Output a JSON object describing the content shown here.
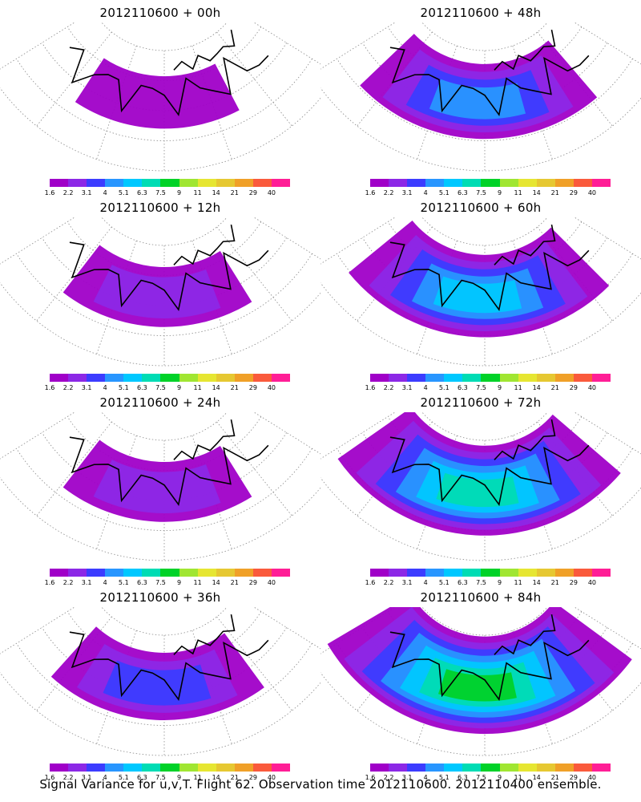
{
  "panels": [
    {
      "title": "2012110600 + 00h",
      "level": 1
    },
    {
      "title": "2012110600 + 48h",
      "level": 4
    },
    {
      "title": "2012110600 + 12h",
      "level": 2
    },
    {
      "title": "2012110600 + 60h",
      "level": 5
    },
    {
      "title": "2012110600 + 24h",
      "level": 2
    },
    {
      "title": "2012110600 + 72h",
      "level": 6
    },
    {
      "title": "2012110600 + 36h",
      "level": 3
    },
    {
      "title": "2012110600 + 84h",
      "level": 7
    }
  ],
  "colorbar": {
    "labels": [
      "1.6",
      "2.2",
      "3.1",
      "4",
      "5.1",
      "6.3",
      "7.5",
      "9",
      "11",
      "14",
      "21",
      "29",
      "40"
    ],
    "colors": [
      "#a000c8",
      "#8c28e6",
      "#3c3cff",
      "#2896ff",
      "#00c8ff",
      "#00dcb4",
      "#00d228",
      "#a0e632",
      "#e6e632",
      "#e6c832",
      "#f0a028",
      "#fa5a3c",
      "#ff1e96"
    ]
  },
  "caption": "Signal Variance for u,v,T. Flight 62. Observation time 2012110600. 2012110400 ensemble."
}
